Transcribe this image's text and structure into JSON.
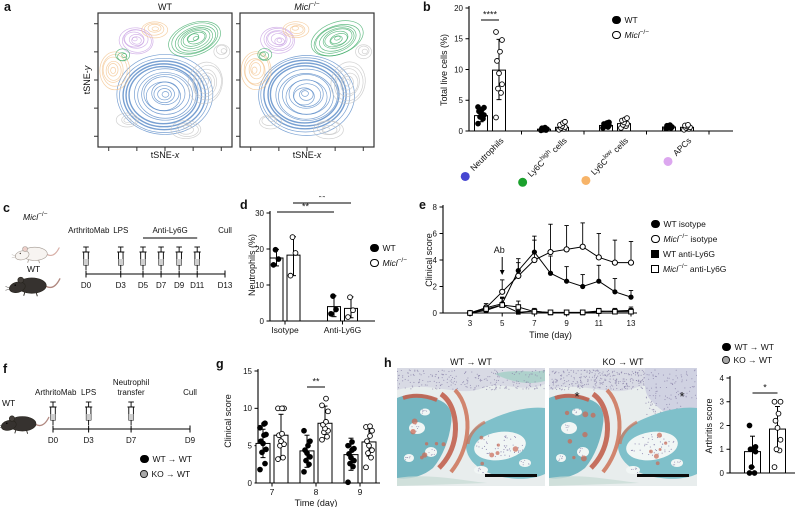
{
  "panel_labels": {
    "a": "a",
    "b": "b",
    "c": "c",
    "d": "d",
    "e": "e",
    "f": "f",
    "g": "g",
    "h": "h"
  },
  "panel_a": {
    "plots": [
      {
        "title": "WT"
      },
      {
        "title_it": "Micl",
        "title_sup": "−/−"
      }
    ],
    "xlabel_pre": "tSNE-",
    "xlabel_it": "x",
    "ylabel_pre": "tSNE-",
    "ylabel_it": "y",
    "cluster_colors": {
      "blue": "#5688c7",
      "green": "#43ae6c",
      "purple": "#c9a3e4",
      "orange": "#f4c48e",
      "grey": "#c6c6c6"
    }
  },
  "panel_c": {
    "mouse_ko_it": "Micl",
    "mouse_ko_sup": "−/−",
    "mouse_wt": "WT",
    "timeline": {
      "days": [
        {
          "label": "D0",
          "f": 0,
          "syr": true
        },
        {
          "label": "D3",
          "f": 0.25,
          "syr": true
        },
        {
          "label": "D5",
          "f": 0.41,
          "syr": true
        },
        {
          "label": "D7",
          "f": 0.54,
          "syr": true
        },
        {
          "label": "D9",
          "f": 0.67,
          "syr": true
        },
        {
          "label": "D11",
          "f": 0.8,
          "syr": true
        },
        {
          "label": "D13",
          "f": 1,
          "syr": false
        }
      ],
      "labels": [
        {
          "text": "ArthritoMab",
          "f": 0.02,
          "dy": 0
        },
        {
          "text": "LPS",
          "f": 0.25,
          "dy": 0
        },
        {
          "text": "Anti-Ly6G",
          "f1": 0.41,
          "f2": 0.8,
          "span": [
            0.41,
            0.8
          ],
          "dy": 0
        },
        {
          "text": "Cull",
          "f": 1,
          "dy": 0
        }
      ]
    }
  },
  "panel_f": {
    "mouse_wt": "WT",
    "timeline": {
      "days": [
        {
          "label": "D0",
          "f": 0,
          "syr": true
        },
        {
          "label": "D3",
          "f": 0.26,
          "syr": true
        },
        {
          "label": "D7",
          "f": 0.57,
          "syr": true
        },
        {
          "label": "D9",
          "f": 1,
          "syr": false
        }
      ],
      "labels": [
        {
          "text": "ArthritoMab",
          "f": 0.02,
          "dy": 10
        },
        {
          "text": "LPS",
          "f": 0.26,
          "dy": 10
        },
        {
          "text": [
            "Neutrophil",
            "transfer"
          ],
          "f": 0.57,
          "dy": 0
        },
        {
          "text": "Cull",
          "f": 1,
          "dy": 10
        }
      ]
    },
    "legend": {
      "wt": "WT → WT",
      "ko": "KO → WT"
    }
  },
  "panel_h": {
    "images": [
      {
        "title": "WT → WT"
      },
      {
        "title": "KO → WT"
      }
    ],
    "asterisk": "*",
    "legend": {
      "wt": "WT → WT",
      "ko": "KO → WT"
    },
    "colors": {
      "bone_teal": "#74b6c1",
      "bone_teal2": "#7fc0ca",
      "cartilage_red": "#c2604e",
      "tissue_lavender": "#d7d9e4",
      "marrow": "#f1f6f5"
    }
  },
  "chart_data": {
    "b": {
      "type": "bar",
      "ylabel": "Total live cells (%)",
      "ylim": [
        0,
        20
      ],
      "yticks": [
        0,
        5,
        10,
        15,
        20
      ],
      "legend": {
        "wt": "WT",
        "ko_it": "Micl",
        "ko_sup": "−/−"
      },
      "categories": [
        {
          "label": "Neutrophils",
          "dot_color": "#4747d1"
        },
        {
          "pre": "Ly6C",
          "sup": "high",
          "post": " cells",
          "dot_color": "#1ba12d"
        },
        {
          "pre": "Ly6C",
          "sup": "low",
          "post": " cells",
          "dot_color": "#f7b469"
        },
        {
          "label": "APCs",
          "dot_color": "#dca7ef"
        }
      ],
      "sig": "****",
      "series": [
        {
          "name": "WT",
          "style": "filled",
          "bars": [
            2.5,
            0.3,
            0.9,
            0.65
          ],
          "err": [
            [
              1.5,
              3.5
            ],
            [
              0.1,
              0.5
            ],
            [
              0.6,
              1.2
            ],
            [
              0.45,
              0.85
            ]
          ],
          "points": [
            [
              1.2,
              2.0,
              2.3,
              2.6,
              3.0,
              3.2,
              3.5,
              3.8,
              3.9
            ],
            [
              0.1,
              0.15,
              0.2,
              0.3,
              0.35,
              0.45,
              0.55
            ],
            [
              0.5,
              0.65,
              0.8,
              0.9,
              1.0,
              1.15,
              1.3,
              1.4
            ],
            [
              0.4,
              0.5,
              0.55,
              0.65,
              0.75,
              0.85,
              0.95
            ]
          ]
        },
        {
          "name": "Micl−/−",
          "style": "open",
          "bars": [
            9.9,
            0.6,
            1.2,
            0.6
          ],
          "err": [
            [
              5.1,
              14.9
            ],
            [
              0.25,
              0.95
            ],
            [
              0.7,
              1.7
            ],
            [
              0.35,
              0.85
            ]
          ],
          "points": [
            [
              2.2,
              6.2,
              6.9,
              7.6,
              9.4,
              11.4,
              12.9,
              14.8,
              16.1
            ],
            [
              0.2,
              0.35,
              0.5,
              0.65,
              0.8,
              1.0,
              1.3,
              1.5
            ],
            [
              0.5,
              0.8,
              1.0,
              1.2,
              1.4,
              1.7,
              1.9,
              2.1
            ],
            [
              0.2,
              0.35,
              0.5,
              0.6,
              0.75,
              0.9,
              1.0
            ]
          ]
        }
      ]
    },
    "d": {
      "type": "bar",
      "ylabel": "Neutrophils (%)",
      "ylim": [
        0,
        30
      ],
      "yticks": [
        0,
        10,
        20,
        30
      ],
      "categories": [
        "Isotype",
        "Anti-Ly6G"
      ],
      "legend": {
        "wt": "WT",
        "ko_it": "Micl",
        "ko_sup": "−/−"
      },
      "sig": [
        "**",
        "**"
      ],
      "series": [
        {
          "name": "WT",
          "style": "filled",
          "bars": [
            17.5,
            4.0
          ],
          "err": [
            [
              15.3,
              19.9
            ],
            [
              1.2,
              7.0
            ]
          ],
          "points": [
            [
              15.6,
              17.2,
              19.8
            ],
            [
              2.0,
              3.2,
              6.9
            ]
          ]
        },
        {
          "name": "Micl−/−",
          "style": "open",
          "bars": [
            18.3,
            3.5
          ],
          "err": [
            [
              12.6,
              23.4
            ],
            [
              0.9,
              6.7
            ]
          ],
          "points": [
            [
              12.6,
              18.9,
              23.3
            ],
            [
              1.1,
              3.0,
              6.6
            ]
          ]
        }
      ]
    },
    "e": {
      "type": "line",
      "ylabel": "Clinical score",
      "ylim": [
        0,
        8
      ],
      "yticks": [
        0,
        2,
        4,
        6,
        8
      ],
      "xlabel": "Time (day)",
      "x": [
        3,
        4,
        5,
        6,
        7,
        8,
        9,
        10,
        11,
        12,
        13
      ],
      "xticks": [
        3,
        5,
        7,
        9,
        11,
        13
      ],
      "annotation": {
        "text": "Ab",
        "x": 5
      },
      "series": [
        {
          "marker": "filled-circle",
          "legend_pre": "WT isotype",
          "y": [
            0,
            0.4,
            0.7,
            3.2,
            4.6,
            3.0,
            2.4,
            2.0,
            2.4,
            1.6,
            1.2
          ],
          "err": [
            0,
            0.3,
            0.5,
            0.9,
            1.2,
            1.3,
            1.1,
            0.9,
            1.2,
            1.0,
            0.5
          ]
        },
        {
          "marker": "open-circle",
          "legend_it": "Micl",
          "legend_sup": "−/−",
          "legend_post": " isotype",
          "y": [
            0,
            0.4,
            1.6,
            2.8,
            4.0,
            4.6,
            4.8,
            5.0,
            4.2,
            3.8,
            3.8
          ],
          "err": [
            0,
            0.3,
            0.9,
            1.0,
            1.5,
            2.1,
            1.8,
            1.8,
            1.8,
            1.7,
            1.6
          ]
        },
        {
          "marker": "filled-square",
          "legend_pre": "WT anti-Ly6G",
          "y": [
            0,
            0.2,
            0.6,
            0.05,
            0.15,
            0,
            0,
            0,
            0.1,
            0.15,
            0.2
          ],
          "err": [
            0,
            0.25,
            0.5,
            0.1,
            0.2,
            0,
            0,
            0,
            0.15,
            0.2,
            0.25
          ]
        },
        {
          "marker": "open-square",
          "legend_it": "Micl",
          "legend_sup": "−/−",
          "legend_post": " anti-Ly6G",
          "y": [
            0,
            0.3,
            0.6,
            0.45,
            0.1,
            0.05,
            0.05,
            0.05,
            0.15,
            0.1,
            0.1
          ],
          "err": [
            0,
            0.25,
            0.55,
            0.45,
            0.15,
            0.1,
            0.1,
            0.1,
            0.2,
            0.15,
            0.15
          ]
        }
      ]
    },
    "g": {
      "type": "bar",
      "ylabel": "Clinical score",
      "ylim": [
        0,
        15
      ],
      "yticks": [
        0,
        5,
        10,
        15
      ],
      "xlabel": "Time (day)",
      "categories": [
        "7",
        "8",
        "9"
      ],
      "sig": "**",
      "series": [
        {
          "name": "WT → WT",
          "style": "filled",
          "bars": [
            5.3,
            4.3,
            3.8
          ],
          "err": [
            [
              3.4,
              7.2
            ],
            [
              2.1,
              6.4
            ],
            [
              1.7,
              6.0
            ]
          ],
          "points": [
            [
              1.8,
              2.6,
              4.1,
              4.5,
              5.3,
              5.6,
              6.4,
              6.5,
              7.4,
              7.9,
              8.0
            ],
            [
              1.5,
              2.5,
              3.0,
              3.5,
              4.0,
              4.4,
              5.0,
              5.6,
              7.0
            ],
            [
              0.1,
              2.2,
              2.6,
              3.0,
              3.4,
              3.9,
              4.4,
              4.6,
              5.0,
              5.5
            ]
          ]
        },
        {
          "name": "KO → WT",
          "style": "open",
          "bars": [
            6.4,
            8.0,
            5.5
          ],
          "err": [
            [
              3.5,
              9.2
            ],
            [
              6.0,
              10.3
            ],
            [
              3.6,
              7.4
            ]
          ],
          "points": [
            [
              3.2,
              3.4,
              5.0,
              5.2,
              5.6,
              6.4,
              6.6,
              10,
              10,
              10
            ],
            [
              5.8,
              6.2,
              6.8,
              7.0,
              7.3,
              7.8,
              8.2,
              9.6,
              10.4,
              11.3
            ],
            [
              2.1,
              3.4,
              4.0,
              4.4,
              5.0,
              5.6,
              6.3,
              7.0,
              7.5,
              7.6
            ]
          ]
        }
      ]
    },
    "h_score": {
      "type": "bar",
      "ylabel": "Arthritis score",
      "ylim": [
        0,
        4
      ],
      "yticks": [
        0,
        1,
        2,
        3,
        4
      ],
      "sig": "*",
      "series": [
        {
          "name": "WT → WT",
          "style": "filled",
          "bars": [
            0.9
          ],
          "err": [
            [
              0.25,
              1.55
            ]
          ],
          "points": [
            [
              0,
              0,
              0.25,
              0.9,
              1.0,
              1.0,
              1.0,
              1.1,
              2.0
            ]
          ]
        },
        {
          "name": "KO → WT",
          "style": "open",
          "bars": [
            1.85
          ],
          "err": [
            [
              0.9,
              2.8
            ]
          ],
          "points": [
            [
              0.25,
              0.95,
              1.0,
              1.4,
              1.9,
              2.2,
              2.5,
              3.0,
              3.0
            ]
          ]
        }
      ]
    }
  }
}
